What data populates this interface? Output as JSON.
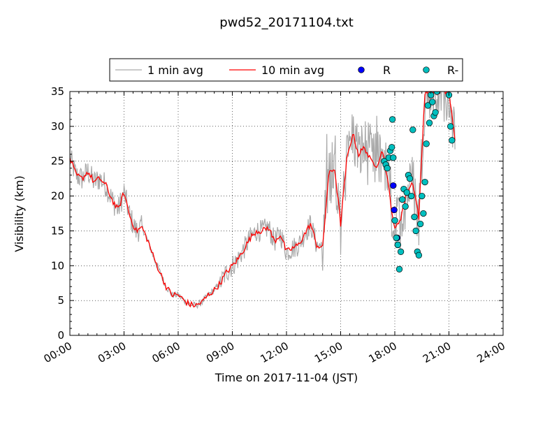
{
  "chart_data": {
    "type": "line",
    "title": "pwd52_20171104.txt",
    "xlabel": "Time on 2017-11-04 (JST)",
    "ylabel": "Visibility (km)",
    "xlim": [
      "00:00",
      "24:00"
    ],
    "ylim": [
      0,
      35
    ],
    "x_ticks": [
      "00:00",
      "03:00",
      "06:00",
      "09:00",
      "12:00",
      "15:00",
      "18:00",
      "21:00",
      "24:00"
    ],
    "y_ticks": [
      0,
      5,
      10,
      15,
      20,
      25,
      30,
      35
    ],
    "grid": true,
    "legend_position": "top-center, above plot",
    "legend": [
      "1 min avg",
      "10 min avg",
      "R",
      "R-"
    ],
    "series": [
      {
        "name": "10 min avg",
        "color": "#ff0000",
        "kind": "line",
        "x": [
          "00:00",
          "00:20",
          "00:40",
          "01:00",
          "01:20",
          "01:40",
          "02:00",
          "02:20",
          "02:40",
          "03:00",
          "03:20",
          "03:40",
          "04:00",
          "04:20",
          "04:40",
          "05:00",
          "05:20",
          "05:40",
          "06:00",
          "06:20",
          "06:40",
          "07:00",
          "07:20",
          "07:40",
          "08:00",
          "08:20",
          "08:40",
          "09:00",
          "09:20",
          "09:40",
          "10:00",
          "10:20",
          "10:40",
          "11:00",
          "11:20",
          "11:40",
          "12:00",
          "12:20",
          "12:40",
          "13:00",
          "13:20",
          "13:40",
          "14:00",
          "14:20",
          "14:40",
          "15:00",
          "15:20",
          "15:40",
          "16:00",
          "16:20",
          "16:40",
          "17:00",
          "17:20",
          "17:40",
          "18:00",
          "18:20",
          "18:40",
          "19:00",
          "19:20",
          "19:40",
          "20:00",
          "20:20",
          "20:40",
          "21:00",
          "21:20"
        ],
        "values": [
          25.5,
          23.0,
          22.5,
          23.5,
          22.0,
          22.5,
          21.5,
          19.5,
          18.0,
          20.5,
          17.0,
          15.0,
          15.5,
          13.5,
          11.0,
          9.0,
          7.0,
          5.8,
          5.8,
          5.0,
          4.4,
          4.3,
          4.8,
          5.8,
          6.5,
          7.5,
          9.0,
          10.0,
          11.0,
          12.5,
          14.0,
          15.0,
          15.0,
          15.5,
          13.5,
          14.5,
          12.0,
          12.5,
          13.0,
          14.5,
          16.0,
          13.0,
          12.5,
          23.0,
          24.0,
          16.0,
          25.0,
          29.0,
          26.0,
          27.0,
          25.0,
          24.5,
          26.5,
          21.0,
          15.0,
          17.0,
          20.5,
          22.0,
          17.0,
          35.0,
          35.0,
          35.0,
          35.0,
          35.0,
          28.0
        ]
      },
      {
        "name": "1 min avg",
        "color": "#aaaaaa",
        "kind": "line",
        "note": "noisy gray trace following the 10 min average with larger excursions"
      },
      {
        "name": "R",
        "color": "#0000ff",
        "kind": "scatter",
        "x": [
          "17:55",
          "17:58",
          "18:08",
          "18:10"
        ],
        "values": [
          21.5,
          18.0,
          14.0,
          13.0
        ]
      },
      {
        "name": "R-",
        "color": "#00bfbf",
        "kind": "scatter",
        "x": [
          "17:25",
          "17:30",
          "17:35",
          "17:40",
          "17:45",
          "17:50",
          "17:52",
          "17:55",
          "18:00",
          "18:05",
          "18:10",
          "18:15",
          "18:20",
          "18:25",
          "18:30",
          "18:35",
          "18:40",
          "18:45",
          "18:50",
          "18:55",
          "19:00",
          "19:05",
          "19:10",
          "19:15",
          "19:20",
          "19:25",
          "19:30",
          "19:35",
          "19:40",
          "19:45",
          "19:50",
          "19:55",
          "20:00",
          "20:05",
          "20:10",
          "20:15",
          "20:20",
          "21:00",
          "21:05",
          "21:10"
        ],
        "values": [
          25.0,
          24.5,
          24.0,
          25.5,
          26.5,
          27.0,
          31.0,
          25.5,
          16.5,
          14.0,
          13.0,
          9.5,
          12.0,
          19.5,
          21.0,
          18.5,
          20.5,
          23.0,
          22.5,
          20.0,
          29.5,
          17.0,
          15.0,
          12.0,
          11.5,
          16.0,
          20.0,
          17.5,
          22.0,
          27.5,
          33.0,
          30.5,
          34.5,
          33.5,
          31.5,
          32.0,
          35.0,
          34.5,
          30.0,
          28.0
        ]
      }
    ]
  }
}
